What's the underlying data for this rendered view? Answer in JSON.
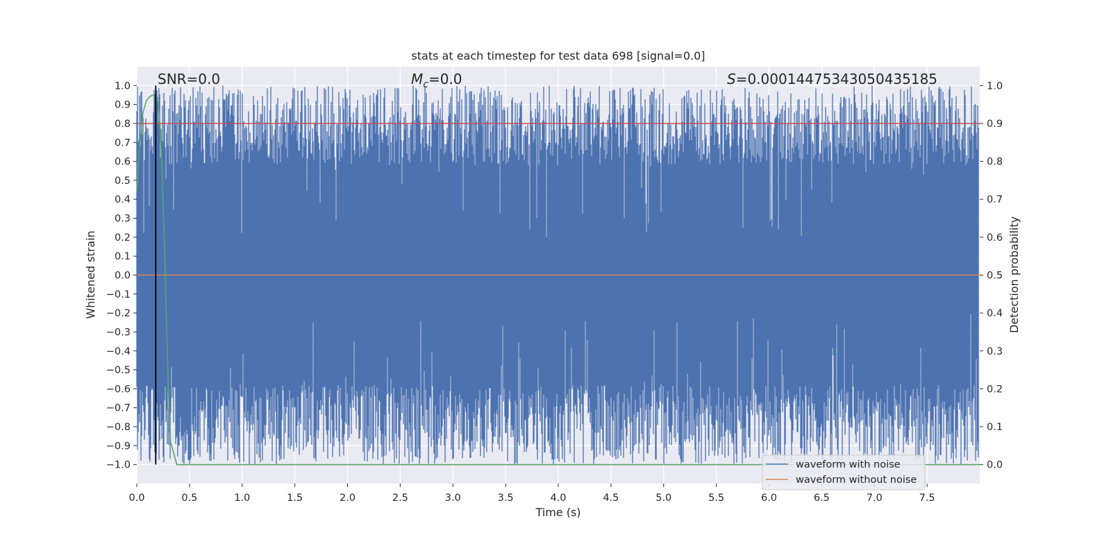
{
  "chart_data": {
    "type": "line",
    "title": "stats at each timestep for test data 698 [signal=0.0]",
    "xlabel": "Time (s)",
    "ylabel": "Whitened strain",
    "ylabel_right": "Detection probability",
    "xlim": [
      0.0,
      8.0
    ],
    "ylim": [
      -1.1,
      1.1
    ],
    "ylim_right": [
      -0.05,
      1.05
    ],
    "grid": true,
    "x_ticks": [
      0.0,
      0.5,
      1.0,
      1.5,
      2.0,
      2.5,
      3.0,
      3.5,
      4.0,
      4.5,
      5.0,
      5.5,
      6.0,
      6.5,
      7.0,
      7.5
    ],
    "x_tick_labels": [
      "0.0",
      "0.5",
      "1.0",
      "1.5",
      "2.0",
      "2.5",
      "3.0",
      "3.5",
      "4.0",
      "4.5",
      "5.0",
      "5.5",
      "6.0",
      "6.5",
      "7.0",
      "7.5"
    ],
    "y_ticks": [
      1.0,
      0.9,
      0.8,
      0.7,
      0.6,
      0.5,
      0.4,
      0.3,
      0.2,
      0.1,
      0.0,
      -0.1,
      -0.2,
      -0.3,
      -0.4,
      -0.5,
      -0.6,
      -0.7,
      -0.8,
      -0.9,
      -1.0
    ],
    "y_tick_labels": [
      "1.0",
      "0.9",
      "0.8",
      "0.7",
      "0.6",
      "0.5",
      "0.4",
      "0.3",
      "0.2",
      "0.1",
      "0.0",
      "−0.1",
      "−0.2",
      "−0.3",
      "−0.4",
      "−0.5",
      "−0.6",
      "−0.7",
      "−0.8",
      "−0.9",
      "−1.0"
    ],
    "y_right_ticks": [
      1.0,
      0.9,
      0.8,
      0.7,
      0.6,
      0.5,
      0.4,
      0.3,
      0.2,
      0.1,
      0.0
    ],
    "y_right_tick_labels": [
      "1.0",
      "0.9",
      "0.8",
      "0.7",
      "0.6",
      "0.5",
      "0.4",
      "0.3",
      "0.2",
      "0.1",
      "0.0"
    ],
    "annotations": {
      "snr": "SNR=0.0",
      "mc_symbol": "M",
      "mc_sub": "c",
      "mc_value": "=0.0",
      "s_symbol": "S",
      "s_value": "=0.00014475343050435185"
    },
    "legend": {
      "placement": "lower-right",
      "entries": [
        "waveform with noise",
        "waveform without noise"
      ]
    },
    "series": [
      {
        "name": "waveform with noise",
        "axis": "left",
        "color": "#4c72b0",
        "kind": "noise-envelope",
        "range": [
          -1.0,
          1.0
        ]
      },
      {
        "name": "waveform without noise",
        "axis": "left",
        "color": "#dd8452",
        "x": [
          0.0,
          8.0
        ],
        "y": [
          0.0,
          0.0
        ]
      },
      {
        "axis": "right",
        "color": "#c44e52",
        "x": [
          0.0,
          8.0
        ],
        "y": [
          0.9,
          0.9
        ]
      },
      {
        "axis": "right",
        "color": "#55a868",
        "x": [
          0.0,
          0.03,
          0.06,
          0.09,
          0.12,
          0.15,
          0.18,
          0.2,
          0.22,
          0.24,
          0.26,
          0.28,
          0.3,
          0.32,
          0.34,
          0.36,
          0.38,
          0.4,
          8.0
        ],
        "y": [
          0.72,
          0.86,
          0.93,
          0.96,
          0.97,
          0.975,
          0.97,
          0.96,
          0.9,
          0.78,
          0.6,
          0.4,
          0.2,
          0.06,
          0.04,
          0.02,
          0.0,
          0.0,
          0.0
        ]
      }
    ],
    "marker_line": {
      "x": 0.18,
      "color": "#000000"
    }
  }
}
